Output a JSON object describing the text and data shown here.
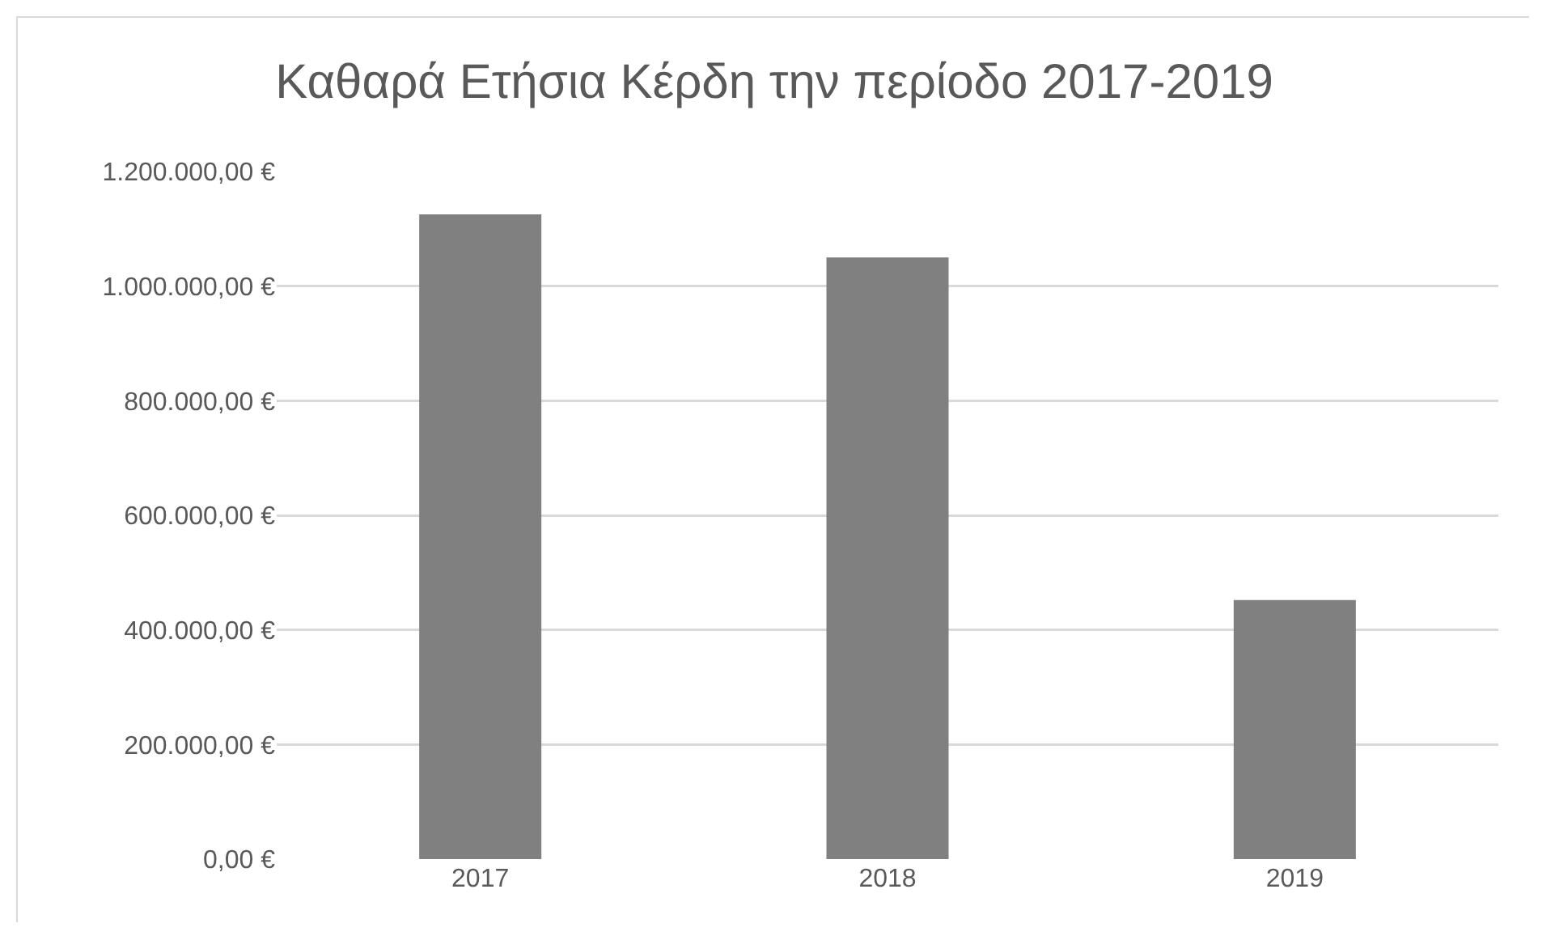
{
  "chart_data": {
    "type": "bar",
    "title": "Καθαρά Ετήσια Κέρδη την περίοδο 2017-2019",
    "categories": [
      "2017",
      "2018",
      "2019"
    ],
    "values": [
      1125000,
      1050000,
      452000
    ],
    "color": "#808080",
    "ylim": [
      0,
      1200000
    ],
    "yticks": [
      {
        "value": 0,
        "label": "0,00 €"
      },
      {
        "value": 200000,
        "label": "200.000,00 €"
      },
      {
        "value": 400000,
        "label": "400.000,00 €"
      },
      {
        "value": 600000,
        "label": "600.000,00 €"
      },
      {
        "value": 800000,
        "label": "800.000,00 €"
      },
      {
        "value": 1000000,
        "label": "1.000.000,00 €"
      },
      {
        "value": 1200000,
        "label": "1.200.000,00 €"
      }
    ],
    "grid": "y"
  }
}
